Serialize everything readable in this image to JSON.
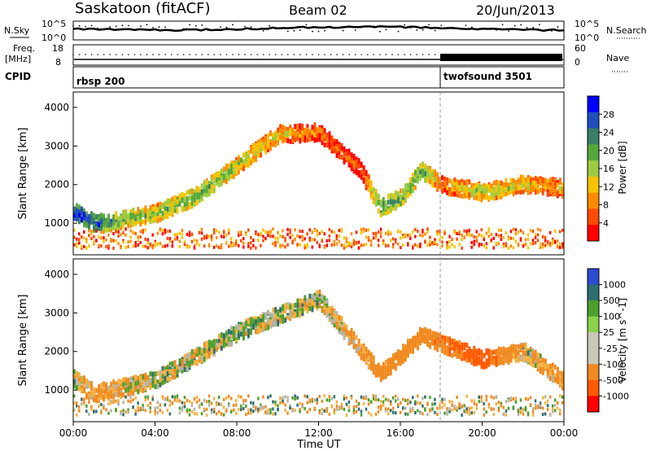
{
  "header": {
    "station": "Saskatoon (fitACF)",
    "beam": "Beam 02",
    "date": "20/Jun/2013"
  },
  "top_panels": {
    "nsky_label": "N.Sky",
    "nsky_ticks": [
      "10^5",
      "10^0"
    ],
    "nsearch_label": "N.Search",
    "nsearch_ticks": [
      "10^5",
      "10^0"
    ],
    "freq_label": "Freq.",
    "freq_unit": "[MHz]",
    "freq_ticks": [
      "18",
      "8"
    ],
    "nave_label": "Nave",
    "nave_ticks": [
      "60",
      "0"
    ],
    "cpid_label": "CPID",
    "cpid_segments": [
      {
        "name": "rbsp 200",
        "start_hour": 0
      },
      {
        "name": "twofsound 3501",
        "start_hour": 18
      }
    ]
  },
  "x_axis": {
    "label": "Time UT",
    "ticks": [
      "00:00",
      "04:00",
      "08:00",
      "12:00",
      "16:00",
      "20:00",
      "00:00"
    ],
    "range_hours": [
      0,
      24
    ]
  },
  "colors": {
    "power_scale": [
      "#0000ff",
      "#1f4fbd",
      "#3a7f66",
      "#55a83a",
      "#9ccc40",
      "#f5c400",
      "#ff8a00",
      "#ff4a00",
      "#ff0000"
    ],
    "velocity_scale": [
      "#2b4bd0",
      "#2e6e6e",
      "#4aa02a",
      "#8ad24a",
      "#c8c8b8",
      "#c8c8b8",
      "#f08a20",
      "#ff5a00",
      "#ff0000"
    ],
    "ground_scatter": "#b4b4a8"
  },
  "chart_data": [
    {
      "type": "heatmap",
      "title": "",
      "xlabel": "Time UT",
      "ylabel": "Slant Range [km]",
      "xlim": [
        0,
        24
      ],
      "ylim": [
        180,
        4400
      ],
      "yticks": [
        1000,
        2000,
        3000,
        4000
      ],
      "colorbar": {
        "label": "Power [dB]",
        "ticks": [
          "28",
          "24",
          "20",
          "16",
          "12",
          "8",
          "4"
        ],
        "range": [
          0,
          30
        ]
      },
      "scatter_bands": [
        {
          "hour": 0,
          "range_km": 1300,
          "power_db": 28
        },
        {
          "hour": 1,
          "range_km": 1000,
          "power_db": 26
        },
        {
          "hour": 2,
          "range_km": 1050,
          "power_db": 20
        },
        {
          "hour": 4,
          "range_km": 1250,
          "power_db": 16
        },
        {
          "hour": 6,
          "range_km": 1700,
          "power_db": 20
        },
        {
          "hour": 8,
          "range_km": 2500,
          "power_db": 16
        },
        {
          "hour": 10,
          "range_km": 3300,
          "power_db": 12
        },
        {
          "hour": 12,
          "range_km": 3350,
          "power_db": 8
        },
        {
          "hour": 14,
          "range_km": 2400,
          "power_db": 6
        },
        {
          "hour": 15,
          "range_km": 1400,
          "power_db": 22
        },
        {
          "hour": 16,
          "range_km": 1650,
          "power_db": 18
        },
        {
          "hour": 17,
          "range_km": 2350,
          "power_db": 20
        },
        {
          "hour": 18,
          "range_km": 2000,
          "power_db": 10
        },
        {
          "hour": 20,
          "range_km": 1800,
          "power_db": 16
        },
        {
          "hour": 22,
          "range_km": 2000,
          "power_db": 14
        },
        {
          "hour": 24,
          "range_km": 1900,
          "power_db": 10
        }
      ]
    },
    {
      "type": "heatmap",
      "title": "",
      "xlabel": "Time UT",
      "ylabel": "Slant Range [km]",
      "xlim": [
        0,
        24
      ],
      "ylim": [
        180,
        4400
      ],
      "yticks": [
        1000,
        2000,
        3000,
        4000
      ],
      "colorbar": {
        "label": "Velocity [m s^-1]",
        "ticks": [
          "1000",
          "500",
          "100",
          "25",
          "-25",
          "-100",
          "-500",
          "-1000"
        ],
        "range": [
          -1200,
          1200
        ]
      },
      "scatter_bands": [
        {
          "hour": 0,
          "range_km": 1300,
          "velocity_ms": 0
        },
        {
          "hour": 1,
          "range_km": 900,
          "velocity_ms": -150
        },
        {
          "hour": 4,
          "range_km": 1250,
          "velocity_ms": 0
        },
        {
          "hour": 8,
          "range_km": 2500,
          "velocity_ms": 0
        },
        {
          "hour": 12,
          "range_km": 3350,
          "velocity_ms": 0
        },
        {
          "hour": 15,
          "range_km": 1400,
          "velocity_ms": -200
        },
        {
          "hour": 17,
          "range_km": 2400,
          "velocity_ms": -300
        },
        {
          "hour": 20,
          "range_km": 1800,
          "velocity_ms": -700
        },
        {
          "hour": 22,
          "range_km": 2000,
          "velocity_ms": 0
        },
        {
          "hour": 24,
          "range_km": 1200,
          "velocity_ms": -200
        }
      ]
    }
  ]
}
